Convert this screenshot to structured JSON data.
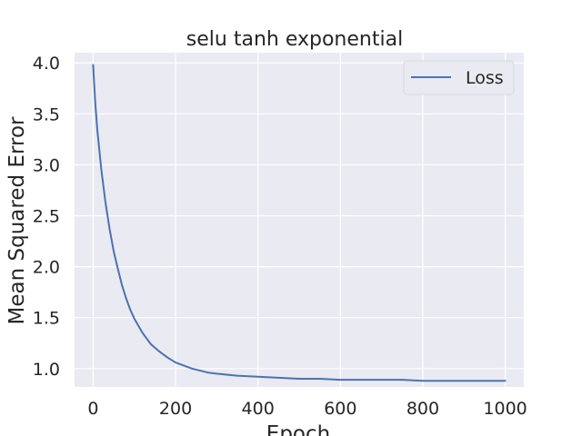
{
  "chart_data": {
    "type": "line",
    "title": "selu tanh exponential",
    "xlabel": "Epoch",
    "ylabel": "Mean Squared Error",
    "xlim": [
      -45,
      1045
    ],
    "ylim": [
      0.82,
      4.1
    ],
    "xticks": [
      0,
      200,
      400,
      600,
      800,
      1000
    ],
    "yticks": [
      1.0,
      1.5,
      2.0,
      2.5,
      3.0,
      3.5,
      4.0
    ],
    "xtick_labels": [
      "0",
      "200",
      "400",
      "600",
      "800",
      "1000"
    ],
    "ytick_labels": [
      "1.0",
      "1.5",
      "2.0",
      "2.5",
      "3.0",
      "3.5",
      "4.0"
    ],
    "grid": true,
    "legend": {
      "position": "top-right",
      "entries": [
        "Loss"
      ]
    },
    "series": [
      {
        "name": "Loss",
        "color": "#4c72b0",
        "x": [
          0,
          5,
          10,
          20,
          30,
          40,
          50,
          60,
          70,
          80,
          90,
          100,
          120,
          140,
          160,
          180,
          200,
          220,
          240,
          260,
          280,
          300,
          350,
          400,
          450,
          500,
          550,
          600,
          650,
          700,
          750,
          800,
          850,
          900,
          950,
          1000
        ],
        "y": [
          3.98,
          3.62,
          3.35,
          2.95,
          2.63,
          2.37,
          2.15,
          1.98,
          1.82,
          1.69,
          1.58,
          1.49,
          1.35,
          1.24,
          1.17,
          1.11,
          1.06,
          1.03,
          1.0,
          0.98,
          0.96,
          0.95,
          0.93,
          0.92,
          0.91,
          0.9,
          0.9,
          0.89,
          0.89,
          0.89,
          0.89,
          0.88,
          0.88,
          0.88,
          0.88,
          0.88
        ]
      }
    ]
  },
  "colors": {
    "axes_background": "#eaeaf2",
    "grid": "#ffffff",
    "text": "#262626",
    "line": "#4c72b0"
  }
}
